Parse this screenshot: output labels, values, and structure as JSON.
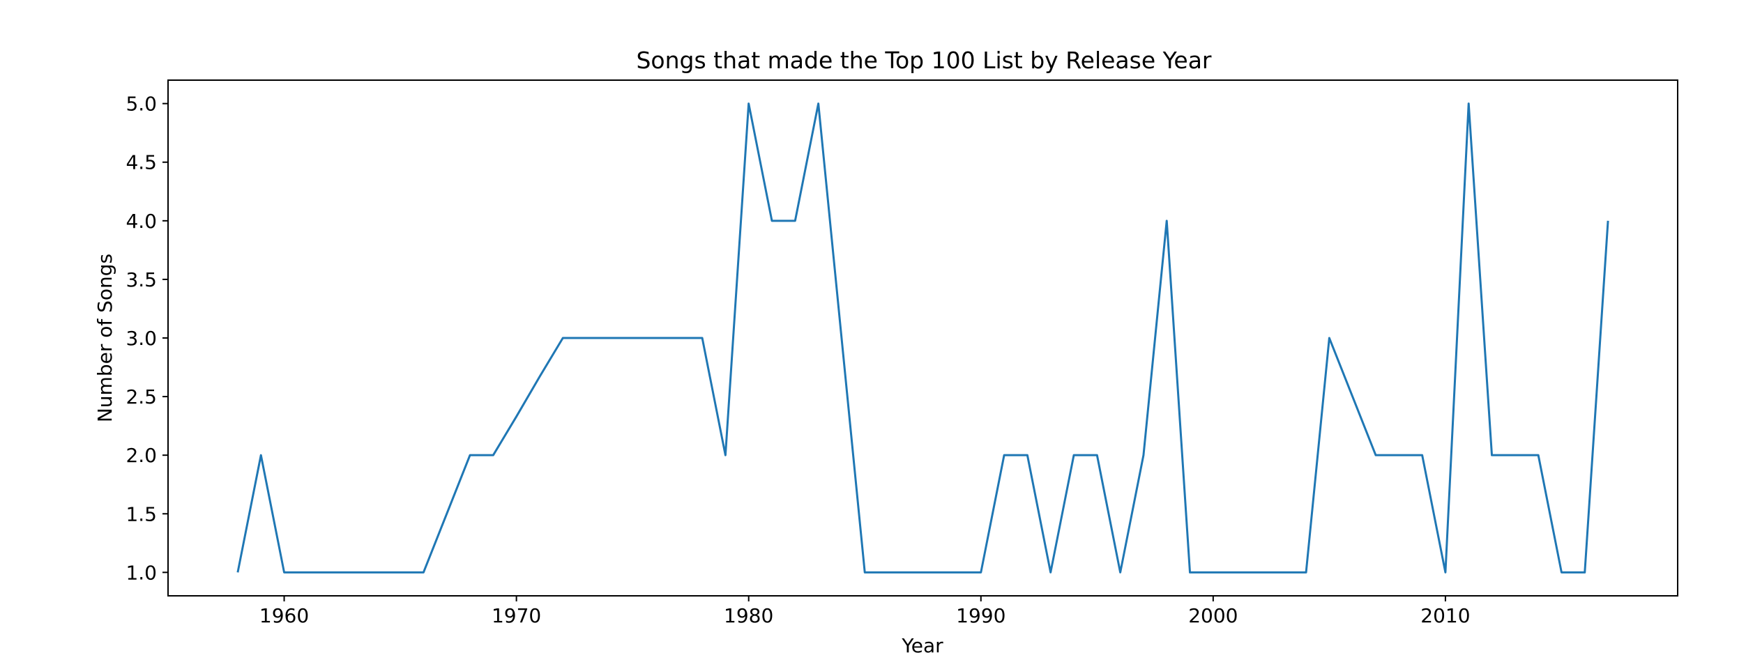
{
  "chart_data": {
    "type": "line",
    "title": "Songs that made the Top 100 List by Release Year",
    "xlabel": "Year",
    "ylabel": "Number of Songs",
    "xlim": [
      1955,
      2020
    ],
    "ylim": [
      0.8,
      5.2
    ],
    "xticks": [
      1960,
      1970,
      1980,
      1990,
      2000,
      2010
    ],
    "xtick_labels": [
      "1960",
      "1970",
      "1980",
      "1990",
      "2000",
      "2010"
    ],
    "yticks": [
      1.0,
      1.5,
      2.0,
      2.5,
      3.0,
      3.5,
      4.0,
      4.5,
      5.0
    ],
    "ytick_labels": [
      "1.0",
      "1.5",
      "2.0",
      "2.5",
      "3.0",
      "3.5",
      "4.0",
      "4.5",
      "5.0"
    ],
    "grid": false,
    "series": [
      {
        "color": "#1f77b4",
        "x": [
          1958,
          1959,
          1960,
          1961,
          1962,
          1963,
          1964,
          1965,
          1966,
          1967,
          1968,
          1969,
          1970,
          1971,
          1972,
          1973,
          1974,
          1975,
          1976,
          1977,
          1978,
          1979,
          1980,
          1981,
          1982,
          1983,
          1985,
          1986,
          1987,
          1988,
          1989,
          1990,
          1991,
          1992,
          1993,
          1994,
          1995,
          1996,
          1997,
          1998,
          1999,
          2000,
          2001,
          2002,
          2003,
          2004,
          2005,
          2006,
          2007,
          2008,
          2009,
          2010,
          2011,
          2012,
          2013,
          2014,
          2015,
          2016,
          2017
        ],
        "y": [
          1,
          2,
          1,
          1,
          1,
          1,
          1,
          1,
          1,
          1.5,
          2,
          2,
          2.33,
          2.67,
          3,
          3,
          3,
          3,
          3,
          3,
          3,
          2,
          5,
          4,
          4,
          5,
          1,
          1,
          1,
          1,
          1,
          1,
          2,
          2,
          1,
          2,
          2,
          1,
          2,
          4,
          1,
          1,
          1,
          1,
          1,
          1,
          3,
          2.5,
          2,
          2,
          2,
          1,
          5,
          2,
          2,
          2,
          1,
          1,
          4
        ]
      }
    ]
  }
}
